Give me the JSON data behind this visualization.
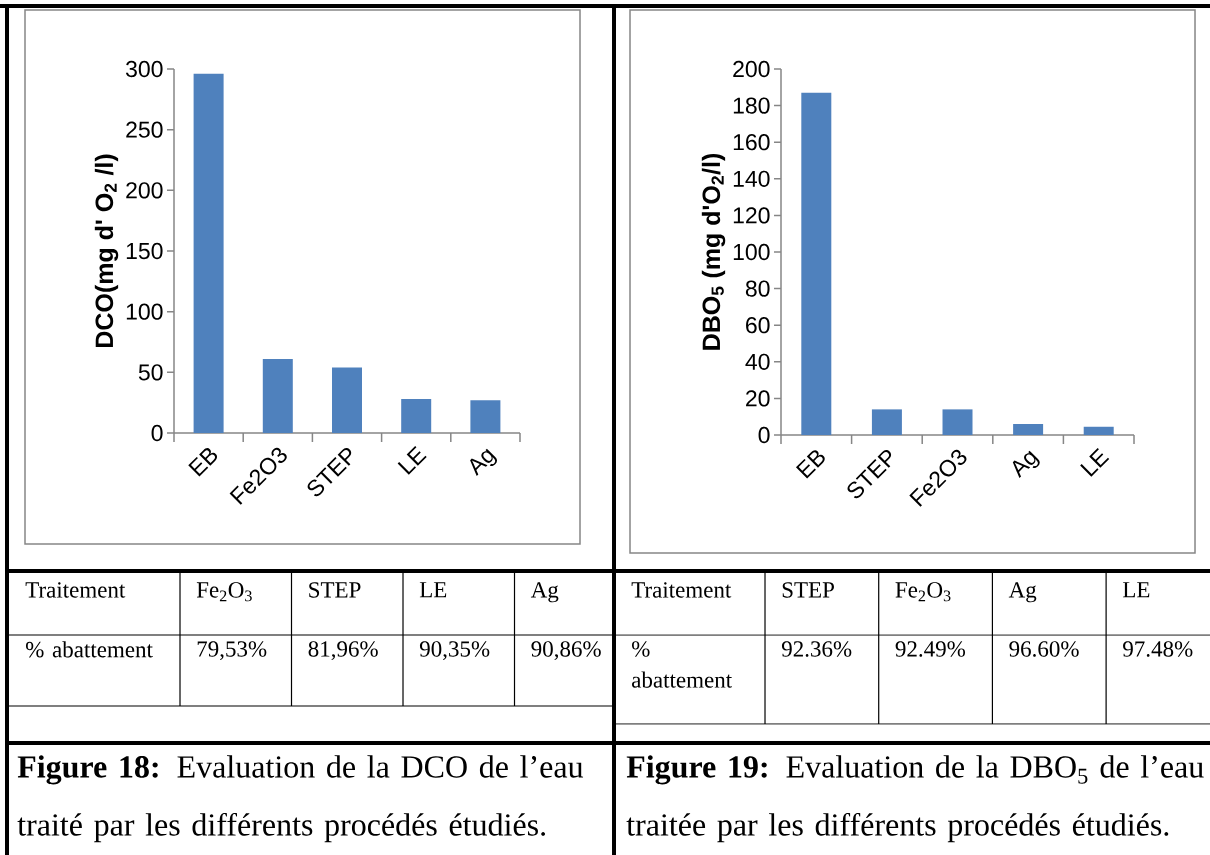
{
  "chart_data": [
    {
      "type": "bar",
      "ylabel": "DCO(mg d' O$_{2}$ /l)",
      "categories": [
        "EB",
        "Fe2O3",
        "STEP",
        "LE",
        "Ag"
      ],
      "values": [
        296,
        61,
        54,
        28,
        27
      ],
      "color": "#4f81bd",
      "ylim": [
        0,
        300
      ],
      "yticks": [
        0,
        50,
        100,
        150,
        200,
        250,
        300
      ],
      "annotations": [
        "Traitement",
        "Fe$_{2}$O$_{3}$",
        "STEP",
        "LE",
        "Ag",
        "% abattement",
        "79,53%",
        "81,96%",
        "90,35%",
        "90,86%",
        "**Figure 18:** Evaluation de la DCO de l’eau traité par les différents procédés étudiés."
      ]
    },
    {
      "type": "bar",
      "ylabel": "DBO$_{5}$ (mg d'O$_{2}$/l)",
      "categories": [
        "EB",
        "STEP",
        "Fe2O3",
        "Ag",
        "LE"
      ],
      "values": [
        187,
        14,
        14,
        6,
        4.5
      ],
      "color": "#4f81bd",
      "ylim": [
        0,
        200
      ],
      "yticks": [
        0,
        20,
        40,
        60,
        80,
        100,
        120,
        140,
        160,
        180,
        200
      ],
      "annotations": [
        "Traitement",
        "STEP",
        "Fe$_{2}$O$_{3}$",
        "Ag",
        "LE",
        "% abattement",
        "92.36%",
        "92.49%",
        "96.60%",
        "97.48%",
        "**Figure 19:** Evaluation de la DBO$_{5}$ de l’eau traitée par les différents procédés étudiés."
      ]
    }
  ]
}
